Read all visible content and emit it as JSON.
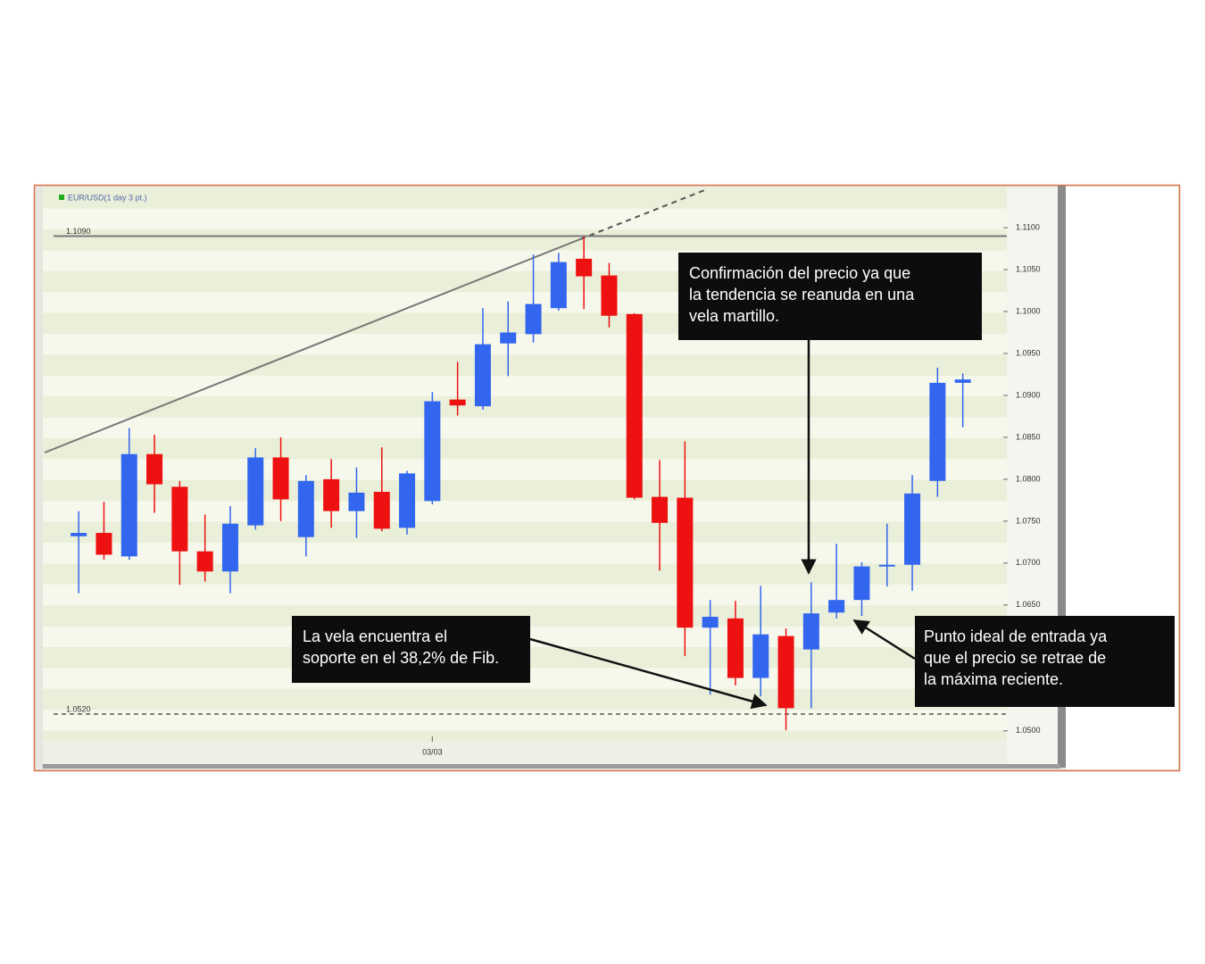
{
  "chart_data": {
    "type": "candlestick",
    "title": "EUR/USD(1 day 3 pt.)",
    "categories": [
      null,
      null,
      null,
      null,
      null,
      null,
      null,
      null,
      null,
      null,
      null,
      null,
      null,
      null,
      "03/03",
      null,
      null,
      null,
      null,
      null,
      null,
      null,
      null,
      null,
      null,
      null,
      null,
      null,
      null,
      null,
      null,
      null,
      null,
      null,
      null,
      null
    ],
    "open": [
      1.0732,
      1.0736,
      1.0708,
      1.083,
      1.0791,
      1.0714,
      1.069,
      1.0745,
      1.0826,
      1.0731,
      1.08,
      1.0762,
      1.0785,
      1.0742,
      1.0774,
      1.0895,
      1.0887,
      1.0962,
      1.0973,
      1.1004,
      1.1063,
      1.1043,
      1.0997,
      1.0779,
      1.0778,
      1.0623,
      1.0634,
      1.0563,
      1.0613,
      1.0597,
      1.0641,
      1.0656,
      1.0696,
      1.0698,
      1.0798,
      1.0915
    ],
    "high": [
      1.0762,
      1.0773,
      1.0861,
      1.0853,
      1.0798,
      1.0758,
      1.0768,
      1.0837,
      1.085,
      1.0805,
      1.0824,
      1.0814,
      1.0838,
      1.081,
      1.0904,
      1.094,
      1.1004,
      1.1012,
      1.1068,
      1.107,
      1.1089,
      1.1058,
      1.0998,
      1.0823,
      1.0845,
      1.0656,
      1.0655,
      1.0673,
      1.0622,
      1.0677,
      1.0723,
      1.0701,
      1.0747,
      1.0805,
      1.0933,
      1.0926
    ],
    "low": [
      1.0664,
      1.0704,
      1.0704,
      1.076,
      1.0674,
      1.0678,
      1.0664,
      1.074,
      1.075,
      1.0708,
      1.0742,
      1.073,
      1.0738,
      1.0734,
      1.077,
      1.0876,
      1.0883,
      1.0923,
      1.0963,
      1.1001,
      1.1003,
      1.0981,
      1.0776,
      1.0691,
      1.0589,
      1.0543,
      1.0554,
      1.0541,
      1.0501,
      1.0527,
      1.0634,
      1.0637,
      1.0672,
      1.0667,
      1.0779,
      1.0862
    ],
    "close": [
      1.0736,
      1.071,
      1.083,
      1.0794,
      1.0714,
      1.069,
      1.0747,
      1.0826,
      1.0776,
      1.0798,
      1.0762,
      1.0784,
      1.0741,
      1.0807,
      1.0893,
      1.0888,
      1.0961,
      1.0975,
      1.1009,
      1.1059,
      1.1042,
      1.0995,
      1.0778,
      1.0748,
      1.0623,
      1.0636,
      1.0563,
      1.0615,
      1.0527,
      1.064,
      1.0656,
      1.0696,
      1.0698,
      1.0783,
      1.0915,
      1.0919
    ],
    "up_color": "#3366ee",
    "down_color": "#ee1111",
    "ylim": [
      1.0488,
      1.1148
    ],
    "yticks": [
      {
        "value": 1.11,
        "label": "1.1100"
      },
      {
        "value": 1.105,
        "label": "1.1050"
      },
      {
        "value": 1.1,
        "label": "1.1000"
      },
      {
        "value": 1.095,
        "label": "1.0950"
      },
      {
        "value": 1.09,
        "label": "1.0900"
      },
      {
        "value": 1.085,
        "label": "1.0850"
      },
      {
        "value": 1.08,
        "label": "1.0800"
      },
      {
        "value": 1.075,
        "label": "1.0750"
      },
      {
        "value": 1.07,
        "label": "1.0700"
      },
      {
        "value": 1.065,
        "label": "1.0650"
      },
      {
        "value": 1.05,
        "label": "1.0500"
      }
    ],
    "hlines": [
      {
        "value": 1.109,
        "label": "1.1090",
        "style": "solid"
      },
      {
        "value": 1.052,
        "label": "1.0520",
        "style": "dashed"
      }
    ],
    "annotations": [
      [
        "Confirmación del precio ya que",
        "la tendencia se reanuda en una",
        "vela martillo."
      ],
      [
        "La vela encuentra el",
        "soporte en el 38,2% de Fib."
      ],
      [
        "Punto ideal de entrada ya",
        "que el precio se retrae de",
        "la máxima reciente."
      ]
    ]
  }
}
